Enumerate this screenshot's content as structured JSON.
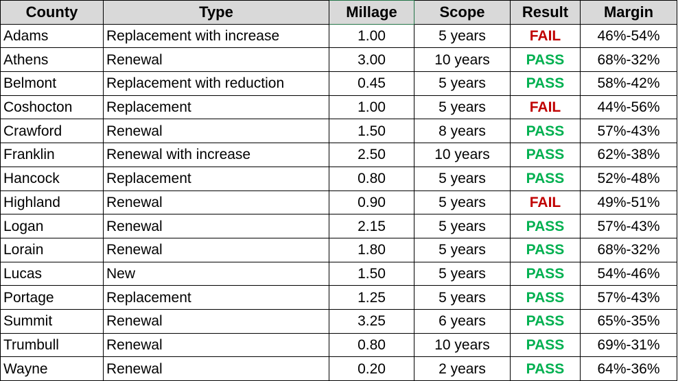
{
  "headers": [
    "County",
    "Type",
    "Millage",
    "Scope",
    "Result",
    "Margin"
  ],
  "colors": {
    "header_bg": "#d9d9d9",
    "fail": "#c00000",
    "pass": "#00b050",
    "selected_cell_border": "#217346"
  },
  "rows": [
    {
      "county": "Adams",
      "type": "Replacement with increase",
      "millage": "1.00",
      "scope": "5 years",
      "result": "FAIL",
      "margin": "46%-54%"
    },
    {
      "county": "Athens",
      "type": "Renewal",
      "millage": "3.00",
      "scope": "10 years",
      "result": "PASS",
      "margin": "68%-32%"
    },
    {
      "county": "Belmont",
      "type": "Replacement with reduction",
      "millage": "0.45",
      "scope": "5 years",
      "result": "PASS",
      "margin": "58%-42%"
    },
    {
      "county": "Coshocton",
      "type": "Replacement",
      "millage": "1.00",
      "scope": "5 years",
      "result": "FAIL",
      "margin": "44%-56%"
    },
    {
      "county": "Crawford",
      "type": "Renewal",
      "millage": "1.50",
      "scope": "8 years",
      "result": "PASS",
      "margin": "57%-43%"
    },
    {
      "county": "Franklin",
      "type": "Renewal with increase",
      "millage": "2.50",
      "scope": "10 years",
      "result": "PASS",
      "margin": "62%-38%"
    },
    {
      "county": "Hancock",
      "type": "Replacement",
      "millage": "0.80",
      "scope": "5 years",
      "result": "PASS",
      "margin": "52%-48%"
    },
    {
      "county": "Highland",
      "type": "Renewal",
      "millage": "0.90",
      "scope": "5 years",
      "result": "FAIL",
      "margin": "49%-51%"
    },
    {
      "county": "Logan",
      "type": "Renewal",
      "millage": "2.15",
      "scope": "5 years",
      "result": "PASS",
      "margin": "57%-43%"
    },
    {
      "county": "Lorain",
      "type": "Renewal",
      "millage": "1.80",
      "scope": "5 years",
      "result": "PASS",
      "margin": "68%-32%"
    },
    {
      "county": "Lucas",
      "type": "New",
      "millage": "1.50",
      "scope": "5 years",
      "result": "PASS",
      "margin": "54%-46%"
    },
    {
      "county": "Portage",
      "type": "Replacement",
      "millage": "1.25",
      "scope": "5 years",
      "result": "PASS",
      "margin": "57%-43%"
    },
    {
      "county": "Summit",
      "type": "Renewal",
      "millage": "3.25",
      "scope": "6 years",
      "result": "PASS",
      "margin": "65%-35%"
    },
    {
      "county": "Trumbull",
      "type": "Renewal",
      "millage": "0.80",
      "scope": "10 years",
      "result": "PASS",
      "margin": "69%-31%"
    },
    {
      "county": "Wayne",
      "type": "Renewal",
      "millage": "0.20",
      "scope": "2 years",
      "result": "PASS",
      "margin": "64%-36%"
    }
  ]
}
